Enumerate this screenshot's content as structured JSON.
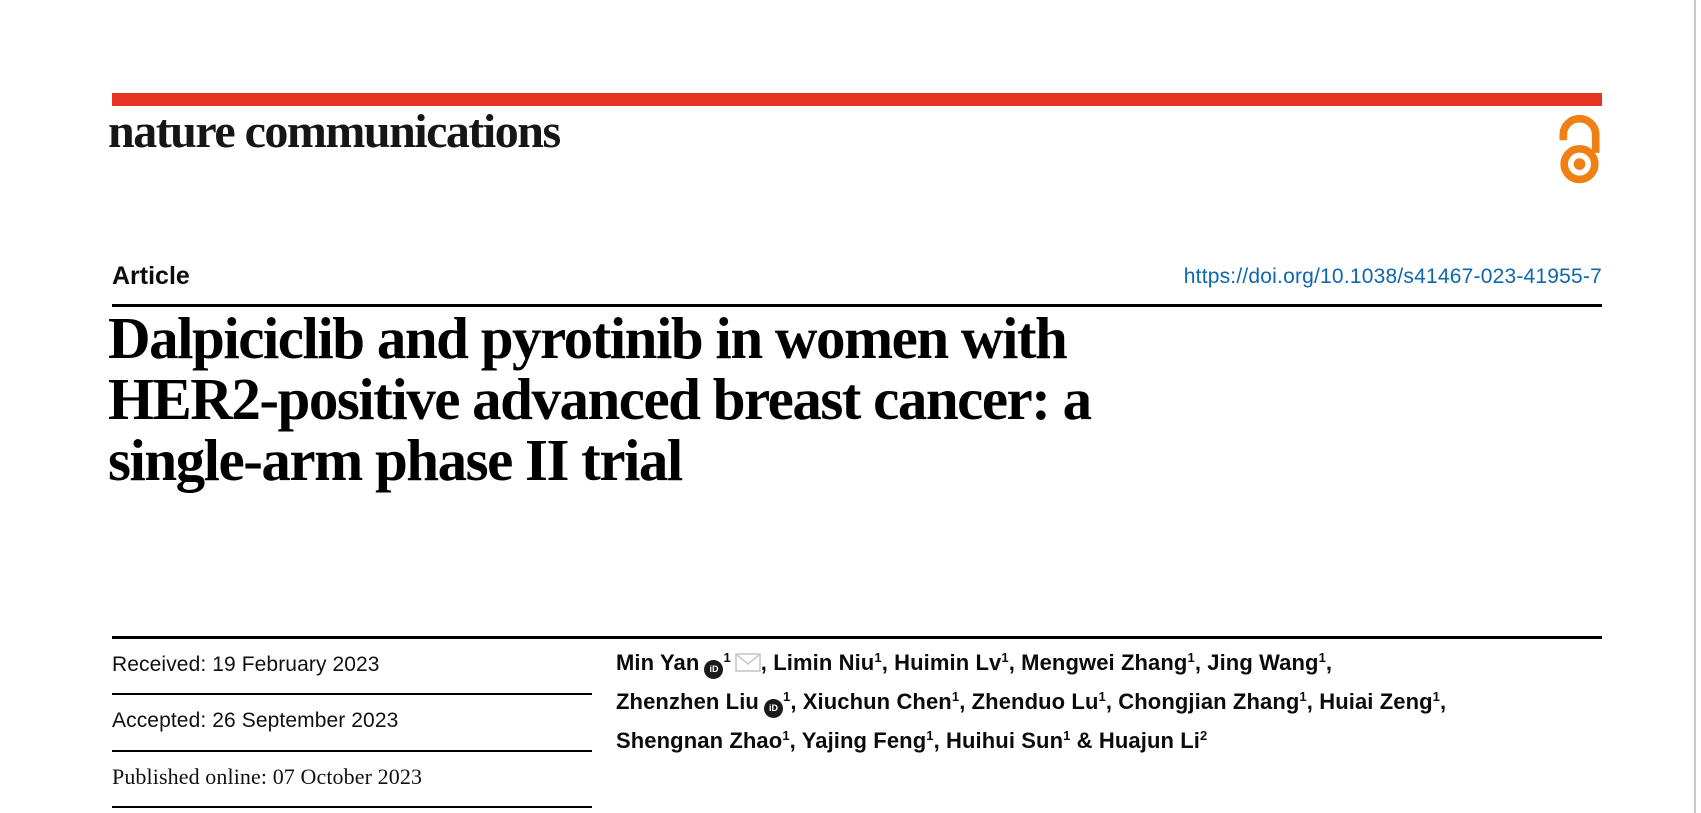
{
  "theme": {
    "brand_red": "#e63323",
    "link_blue": "#0e66ae",
    "open_access_orange": "#ef8013"
  },
  "masthead": {
    "journal_name": "nature communications",
    "open_access_icon": "open-access-lock-icon"
  },
  "article": {
    "type_label": "Article",
    "doi_url": "https://doi.org/10.1038/s41467-023-41955-7",
    "title": "Dalpiciclib and pyrotinib in women with HER2-positive advanced breast cancer: a single-arm phase II trial",
    "title_lines": [
      "Dalpiciclib and pyrotinib in women with",
      "HER2-positive advanced breast cancer: a",
      "single-arm phase II trial"
    ]
  },
  "history": {
    "received": "Received: 19 February 2023",
    "accepted": "Accepted: 26 September 2023",
    "published": "Published online: 07 October 2023"
  },
  "authors": {
    "orcid_icon_text": "iD",
    "lines": [
      [
        {
          "name": "Min Yan",
          "orcid": true,
          "sup": "1",
          "mail": true,
          "tail": ", "
        },
        {
          "name": "Limin Niu",
          "sup": "1",
          "tail": ", "
        },
        {
          "name": "Huimin Lv",
          "sup": "1",
          "tail": ", "
        },
        {
          "name": "Mengwei Zhang",
          "sup": "1",
          "tail": ", "
        },
        {
          "name": "Jing Wang",
          "sup": "1",
          "tail": ","
        }
      ],
      [
        {
          "name": "Zhenzhen Liu",
          "orcid": true,
          "sup": "1",
          "tail": ", "
        },
        {
          "name": "Xiuchun Chen",
          "sup": "1",
          "tail": ", "
        },
        {
          "name": "Zhenduo Lu",
          "sup": "1",
          "tail": ", "
        },
        {
          "name": "Chongjian Zhang",
          "sup": "1",
          "tail": ", "
        },
        {
          "name": "Huiai Zeng",
          "sup": "1",
          "tail": ","
        }
      ],
      [
        {
          "name": "Shengnan Zhao",
          "sup": "1",
          "tail": ", "
        },
        {
          "name": "Yajing Feng",
          "sup": "1",
          "tail": ", "
        },
        {
          "name": "Huihui Sun",
          "sup": "1",
          "tail": " & "
        },
        {
          "name": "Huajun Li",
          "sup": "2",
          "tail": ""
        }
      ]
    ]
  }
}
